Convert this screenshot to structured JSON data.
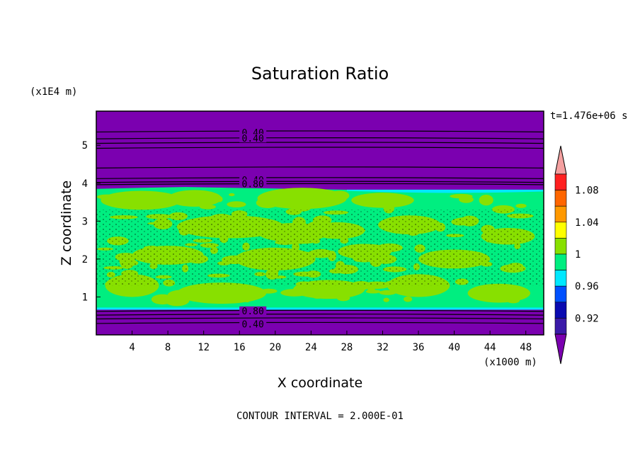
{
  "chart_data": {
    "type": "heatmap",
    "title": "Saturation Ratio",
    "xlabel": "X coordinate",
    "ylabel": "Z coordinate",
    "x_unit": "(x1000 m)",
    "y_unit": "(x1E4 m)",
    "time_label": "t=1.476e+06 s",
    "footer": "CONTOUR INTERVAL = 2.000E-01",
    "xlim": [
      0,
      50
    ],
    "ylim": [
      0,
      5.9
    ],
    "x_ticks": [
      "4",
      "8",
      "12",
      "16",
      "20",
      "24",
      "28",
      "32",
      "36",
      "40",
      "44",
      "48"
    ],
    "y_ticks": [
      "1",
      "2",
      "3",
      "4",
      "5"
    ],
    "colorbar": {
      "labels": [
        "1.08",
        "1.04",
        "1",
        "0.96",
        "0.92"
      ],
      "levels_colors": [
        {
          "range": "<0.90",
          "color": "#7b00b0"
        },
        {
          "range": "0.90-0.92",
          "color": "#3a1aa8"
        },
        {
          "range": "0.92-0.94",
          "color": "#0a0ab0"
        },
        {
          "range": "0.94-0.96",
          "color": "#0050ff"
        },
        {
          "range": "0.96-0.98",
          "color": "#00e8ff"
        },
        {
          "range": "0.98-1.00",
          "color": "#00ee80"
        },
        {
          "range": "1.00-1.02",
          "color": "#88e000"
        },
        {
          "range": "1.02-1.04",
          "color": "#ffff00"
        },
        {
          "range": "1.04-1.06",
          "color": "#ff9900"
        },
        {
          "range": "1.06-1.08",
          "color": "#ff6600"
        },
        {
          "range": "1.08-1.10",
          "color": "#ff2020"
        },
        {
          "range": ">1.10",
          "color": "#f4a0a0"
        }
      ]
    },
    "contour_labels": [
      {
        "text": "0.40",
        "x": 17.5,
        "z": 5.3
      },
      {
        "text": "0.40",
        "x": 17.5,
        "z": 5.15
      },
      {
        "text": "0.40",
        "x": 17.5,
        "z": 4.05
      },
      {
        "text": "0.80",
        "x": 17.5,
        "z": 3.95
      },
      {
        "text": "0.80",
        "x": 17.5,
        "z": 0.6
      },
      {
        "text": "0.40",
        "x": 17.5,
        "z": 0.25
      }
    ]
  }
}
